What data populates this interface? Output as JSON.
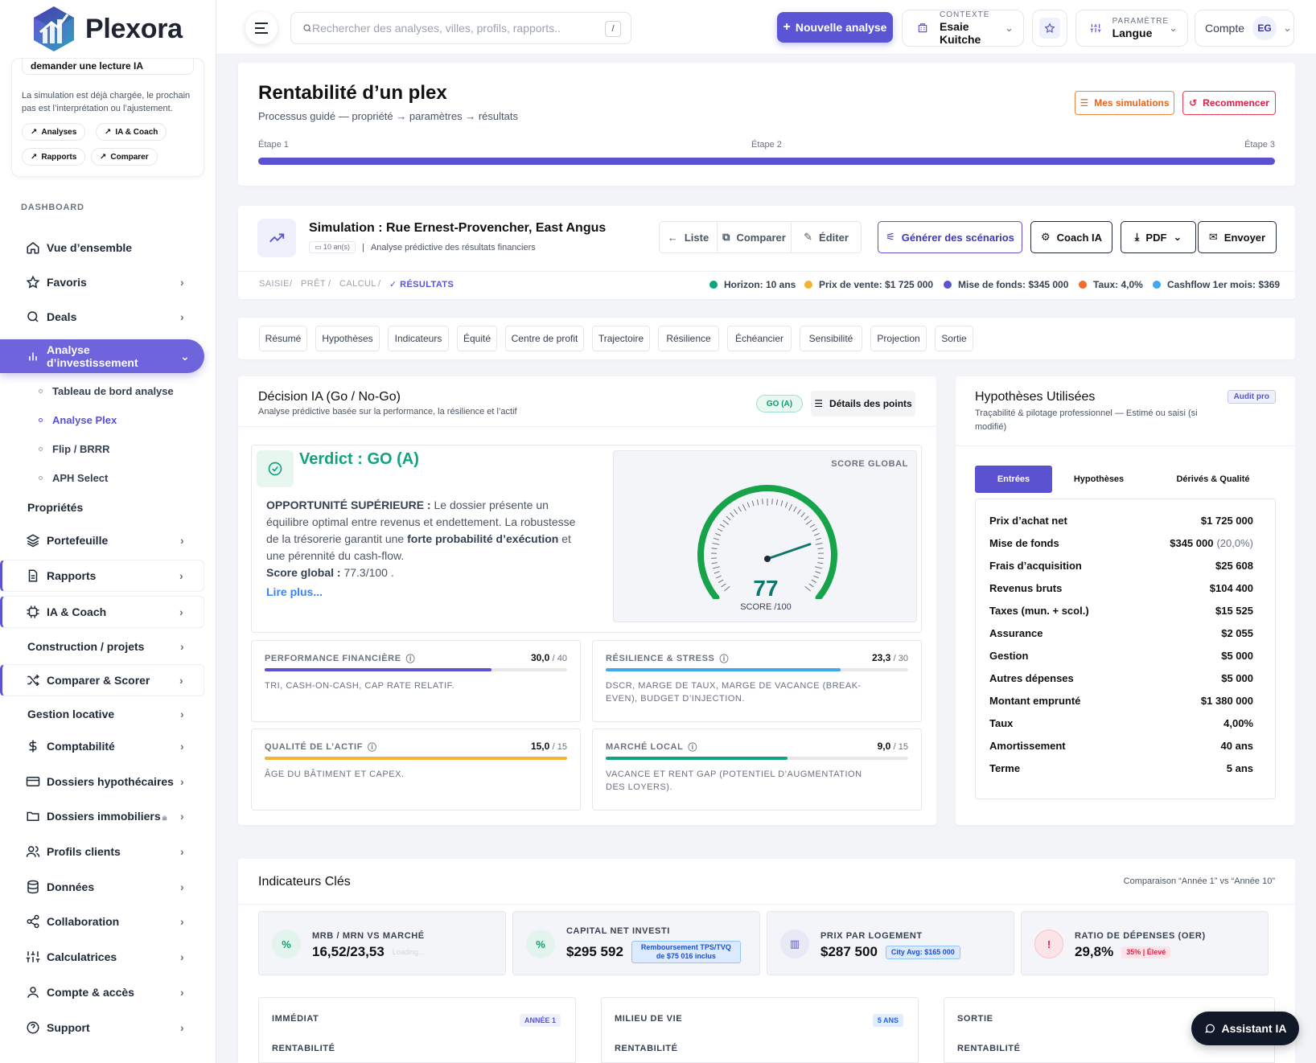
{
  "app": {
    "name": "Plexora"
  },
  "sidebar": {
    "help_card": {
      "title": "demander une lecture IA",
      "text": "La simulation est déjà chargée, le prochain pas est l’interprétation ou l’ajustement.",
      "chips": [
        "Analyses",
        "IA & Coach",
        "Rapports",
        "Comparer"
      ]
    },
    "section_label": "DASHBOARD",
    "items": [
      {
        "label": "Vue d’ensemble",
        "icon": "home-icon"
      },
      {
        "label": "Favoris",
        "icon": "star-icon"
      },
      {
        "label": "Deals",
        "icon": "search-icon"
      },
      {
        "label": "Analyse d’investissement",
        "icon": "bar-chart-icon"
      },
      {
        "label": "Propriétés"
      },
      {
        "label": "Portefeuille",
        "icon": "layers-icon"
      },
      {
        "label": "Rapports",
        "icon": "document-icon"
      },
      {
        "label": "IA & Coach",
        "icon": "chip-icon"
      },
      {
        "label": "Construction / projets"
      },
      {
        "label": "Comparer & Scorer",
        "icon": "shuffle-icon"
      },
      {
        "label": "Gestion locative"
      },
      {
        "label": "Comptabilité",
        "icon": "dollar-icon"
      },
      {
        "label": "Dossiers hypothécaires",
        "icon": "card-icon"
      },
      {
        "label": "Dossiers immobiliers",
        "icon": "folder-icon"
      },
      {
        "label": "Profils clients",
        "icon": "users-icon"
      },
      {
        "label": "Données",
        "icon": "database-icon"
      },
      {
        "label": "Collaboration",
        "icon": "share-icon"
      },
      {
        "label": "Calculatrices",
        "icon": "sliders-icon"
      },
      {
        "label": "Compte & accès",
        "icon": "user-icon"
      },
      {
        "label": "Support",
        "icon": "help-icon"
      }
    ],
    "sub_items": [
      "Tableau de bord analyse",
      "Analyse Plex",
      "Flip / BRRR",
      "APH Select"
    ]
  },
  "topbar": {
    "search_placeholder": "Rechercher des analyses, villes, profils, rapports..",
    "search_kbd": "/",
    "new_analysis": "Nouvelle analyse",
    "context_label": "CONTEXTE",
    "context_value": "Esaie Kuitche",
    "param_label": "PARAMÈTRE",
    "param_value": "Langue",
    "account_label": "Compte",
    "account_initials": "EG"
  },
  "header": {
    "title": "Rentabilité d’un plex",
    "subtitle": "Processus guidé — propriété → paramètres → résultats",
    "my_simulations": "Mes simulations",
    "restart": "Recommencer",
    "steps": [
      "Étape 1",
      "Étape 2",
      "Étape 3"
    ],
    "progress": 1.0
  },
  "simulation": {
    "title": "Simulation : Rue Ernest-Provencher, East Angus",
    "duration_chip": "10 an(s)",
    "subtitle": "Analyse prédictive des résultats financiers",
    "actions": [
      "Liste",
      "Comparer",
      "Éditer"
    ],
    "generate": "Générer des scénarios",
    "coach": "Coach IA",
    "pdf": "PDF",
    "send": "Envoyer",
    "breadcrumb": [
      "SAISIE",
      "PRÊT",
      "CALCUL",
      "RÉSULTATS"
    ],
    "legend": [
      {
        "text": "Horizon: 10 ans",
        "color": "#10a37f"
      },
      {
        "text": "Prix de vente: $1 725 000",
        "color": "#f2b233"
      },
      {
        "text": "Mise de fonds: $345 000",
        "color": "#5b52d1"
      },
      {
        "text": "Taux: 4,0%",
        "color": "#f26b2b"
      },
      {
        "text": "Cashflow 1er mois: $369",
        "color": "#3fa8ef"
      }
    ]
  },
  "tabs": [
    "Résumé",
    "Hypothèses",
    "Indicateurs",
    "Équité",
    "Centre de profit",
    "Trajectoire",
    "Résilience",
    "Échéancier",
    "Sensibilité",
    "Projection",
    "Sortie"
  ],
  "decision": {
    "title": "Décision IA (Go / No-Go)",
    "subtitle": "Analyse prédictive basée sur la performance, la résilience et l’actif",
    "badge": "GO (A)",
    "details_btn": "Détails des points",
    "verdict": "Verdict : GO (A)",
    "lead": "OPPORTUNITÉ SUPÉRIEURE :",
    "text1": " Le dossier présente un équilibre optimal entre revenus et endettement. La robustesse de la trésorerie garantit une ",
    "bold2": "forte probabilité d’exécution",
    "text2": " et une pérennité du cash-flow.",
    "score_label": "Score global :",
    "score_text": " 77.3/100 .",
    "read_more": "Lire plus...",
    "gauge_title": "SCORE GLOBAL",
    "gauge_value": "77",
    "gauge_caption": "SCORE /100",
    "gauge_score": 77.3,
    "blocks": [
      {
        "title": "PERFORMANCE FINANCIÈRE",
        "value": "30,0",
        "max": "/ 40",
        "ratio": 0.75,
        "color": "#5b52d1",
        "desc": "TRI, CASH-ON-CASH, CAP RATE RELATIF."
      },
      {
        "title": "RÉSILIENCE & STRESS",
        "value": "23,3",
        "max": "/ 30",
        "ratio": 0.777,
        "color": "#3fa8ef",
        "desc": "DSCR, MARGE DE TAUX, MARGE DE VACANCE (BREAK-EVEN), BUDGET D’INJECTION."
      },
      {
        "title": "QUALITÉ DE L’ACTIF",
        "value": "15,0",
        "max": "/ 15",
        "ratio": 1.0,
        "color": "#f2b233",
        "desc": "ÂGE DU BÂTIMENT ET CAPEX."
      },
      {
        "title": "MARCHÉ LOCAL",
        "value": "9,0",
        "max": "/ 15",
        "ratio": 0.6,
        "color": "#10a37f",
        "desc": "VACANCE ET RENT GAP (POTENTIEL D’AUGMENTATION DES LOYERS)."
      }
    ]
  },
  "assumptions": {
    "title": "Hypothèses Utilisées",
    "subtitle": "Traçabilité & pilotage professionnel — Estimé ou saisi (si modifié)",
    "badge": "Audit pro",
    "tabs": [
      "Entrées",
      "Hypothèses",
      "Dérivés & Qualité"
    ],
    "rows": [
      {
        "label": "Prix d’achat net",
        "value": "$1 725 000",
        "extra": ""
      },
      {
        "label": "Mise de fonds",
        "value": "$345 000",
        "extra": "(20,0%)"
      },
      {
        "label": "Frais d’acquisition",
        "value": "$25 608",
        "extra": ""
      },
      {
        "label": "Revenus bruts",
        "value": "$104 400",
        "extra": ""
      },
      {
        "label": "Taxes (mun. + scol.)",
        "value": "$15 525",
        "extra": ""
      },
      {
        "label": "Assurance",
        "value": "$2 055",
        "extra": ""
      },
      {
        "label": "Gestion",
        "value": "$5 000",
        "extra": ""
      },
      {
        "label": "Autres dépenses",
        "value": "$5 000",
        "extra": ""
      },
      {
        "label": "Montant emprunté",
        "value": "$1 380 000",
        "extra": ""
      },
      {
        "label": "Taux",
        "value": "4,00%",
        "extra": ""
      },
      {
        "label": "Amortissement",
        "value": "40 ans",
        "extra": ""
      },
      {
        "label": "Terme",
        "value": "5 ans",
        "extra": ""
      }
    ]
  },
  "indicators": {
    "title": "Indicateurs Clés",
    "compare": "Comparaison “Année 1” vs “Année 10”",
    "kpis": [
      {
        "title": "MRB / MRN VS MARCHÉ",
        "value": "16,52/23,53",
        "badge": "Loading...",
        "icon": "percent-icon",
        "glyph": "%"
      },
      {
        "title": "CAPITAL NET INVESTI",
        "value": "$295 592",
        "badge": "Remboursement TPS/TVQ de $75 016 inclus",
        "icon": "percent-icon",
        "glyph": "%"
      },
      {
        "title": "PRIX PAR LOGEMENT",
        "value": "$287 500",
        "badge": "City Avg: $165 000",
        "icon": "building-icon",
        "glyph": "▥"
      },
      {
        "title": "RATIO DE DÉPENSES (OER)",
        "value": "29,8%",
        "badge": "35% | Élevé",
        "icon": "alert-icon",
        "glyph": "!"
      }
    ],
    "phases": [
      {
        "title": "IMMÉDIAT",
        "badge": "ANNÉE 1",
        "section": "RENTABILITÉ"
      },
      {
        "title": "MILIEU DE VIE",
        "badge": "5 ANS",
        "section": "RENTABILITÉ"
      },
      {
        "title": "SORTIE",
        "badge": "",
        "section": "RENTABILITÉ"
      }
    ]
  },
  "assistant": "Assistant IA"
}
